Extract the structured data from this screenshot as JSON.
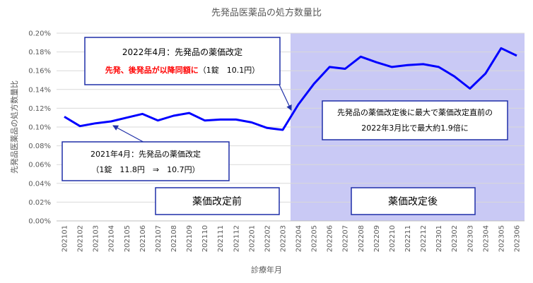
{
  "chart_data": {
    "type": "line",
    "title": "先発品医薬品の処方数量比",
    "xlabel": "診療年月",
    "ylabel": "先発品医薬品の処方数量比",
    "ylim": [
      0,
      0.2
    ],
    "yticks": [
      "0.00%",
      "0.02%",
      "0.04%",
      "0.06%",
      "0.08%",
      "0.10%",
      "0.12%",
      "0.14%",
      "0.16%",
      "0.18%",
      "0.20%"
    ],
    "grid": true,
    "line_color": "#0000ff",
    "shade_color": "#c9c9f5",
    "categories": [
      "202101",
      "202102",
      "202103",
      "202104",
      "202105",
      "202106",
      "202107",
      "202108",
      "202109",
      "202110",
      "202111",
      "202112",
      "202201",
      "202202",
      "202203",
      "202204",
      "202205",
      "202206",
      "202207",
      "202208",
      "202209",
      "202210",
      "202211",
      "202212",
      "202301",
      "202302",
      "202303",
      "202304",
      "202305",
      "202306"
    ],
    "values": [
      0.111,
      0.101,
      0.104,
      0.106,
      0.11,
      0.114,
      0.107,
      0.112,
      0.115,
      0.107,
      0.108,
      0.108,
      0.105,
      0.099,
      0.097,
      0.124,
      0.146,
      0.164,
      0.162,
      0.175,
      0.169,
      0.164,
      0.166,
      0.167,
      0.164,
      0.154,
      0.141,
      0.157,
      0.184,
      0.176
    ],
    "shaded_from_category": "202204"
  },
  "annotations": {
    "top": {
      "line1": "2022年4月：先発品の薬価改定",
      "line2_red": "先発、後発品が以降同額に",
      "line2_black": "（1錠　10.1円）"
    },
    "bottom": {
      "line1": "2021年4月：先発品の薬価改定",
      "line2": "（1錠　11.8円　⇒　10.7円）"
    },
    "right": {
      "line1": "先発品の薬価改定後に最大で薬価改定直前の",
      "line2": "2022年3月比で最大約1.9倍に"
    },
    "phase_before": "薬価改定前",
    "phase_after": "薬価改定後"
  }
}
